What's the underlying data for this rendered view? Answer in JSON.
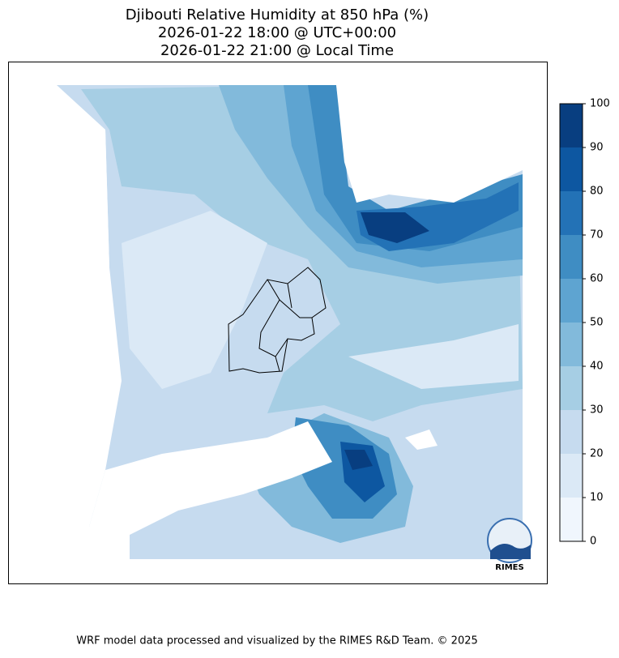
{
  "title": [
    "Djibouti Relative Humidity at 850 hPa (%)",
    "2026-01-22 18:00 @ UTC+00:00",
    "2026-01-22 21:00 @ Local Time"
  ],
  "colorbar": {
    "ticks": [
      0,
      10,
      20,
      30,
      40,
      50,
      60,
      70,
      80,
      90,
      100
    ],
    "colors": [
      "#f0f6fd",
      "#dbe9f6",
      "#c6dbef",
      "#a6cee4",
      "#82badb",
      "#5ea4d1",
      "#3f8dc3",
      "#2372b6",
      "#0d57a1",
      "#083e80"
    ]
  },
  "logo": "RIMES",
  "footer": "WRF model data processed and visualized by the RIMES R&D Team. © 2025"
}
